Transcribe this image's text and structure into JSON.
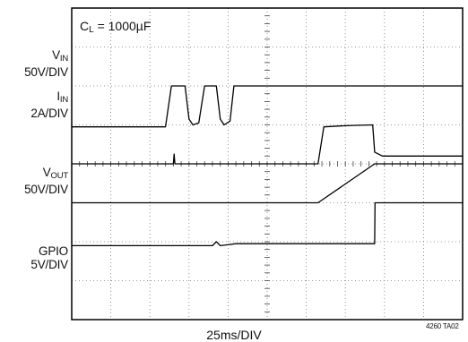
{
  "condition": {
    "symbol": "C",
    "sub": "L",
    "rest": " = 1000µF"
  },
  "labels": {
    "vin": {
      "name": "V",
      "sub": "IN",
      "scale": "50V/DIV"
    },
    "iin": {
      "name": "I",
      "sub": "IN",
      "scale": "2A/DIV"
    },
    "vout": {
      "name": "V",
      "sub": "OUT",
      "scale": "50V/DIV"
    },
    "gpio": {
      "name": "GPIO",
      "sub": "",
      "scale": "5V/DIV"
    }
  },
  "timebase": "25ms/DIV",
  "figure_id": "4260 TA02",
  "chart_data": {
    "type": "line",
    "title": "",
    "xlabel": "25ms/DIV",
    "x_divisions": 10,
    "y_divisions": 8,
    "grid": true,
    "series": [
      {
        "name": "VIN",
        "points": [
          [
            0,
            0.95
          ],
          [
            2.4,
            0.95
          ],
          [
            2.55,
            2.0
          ],
          [
            2.9,
            2.0
          ],
          [
            3.0,
            1.15
          ],
          [
            3.1,
            1.0
          ],
          [
            3.25,
            1.05
          ],
          [
            3.4,
            2.0
          ],
          [
            3.7,
            2.0
          ],
          [
            3.8,
            1.15
          ],
          [
            3.9,
            1.0
          ],
          [
            4.05,
            1.1
          ],
          [
            4.15,
            2.0
          ],
          [
            10,
            2.0
          ]
        ]
      },
      {
        "name": "IIN",
        "points": [
          [
            0,
            0
          ],
          [
            2.6,
            0
          ],
          [
            2.62,
            0.25
          ],
          [
            2.64,
            0
          ],
          [
            6.3,
            0
          ],
          [
            6.45,
            0.95
          ],
          [
            7.0,
            0.98
          ],
          [
            7.7,
            1.0
          ],
          [
            7.75,
            0.3
          ],
          [
            7.95,
            0.2
          ],
          [
            10,
            0.2
          ]
        ]
      },
      {
        "name": "VOUT",
        "points": [
          [
            0,
            -1.0
          ],
          [
            6.3,
            -1.0
          ],
          [
            7.75,
            0.0
          ],
          [
            10,
            0.0
          ]
        ]
      },
      {
        "name": "GPIO",
        "points": [
          [
            0,
            -2.1
          ],
          [
            3.6,
            -2.1
          ],
          [
            3.7,
            -2.0
          ],
          [
            3.8,
            -2.1
          ],
          [
            4.2,
            -2.05
          ],
          [
            7.75,
            -2.05
          ],
          [
            7.76,
            -1.0
          ],
          [
            10,
            -1.0
          ]
        ]
      }
    ]
  }
}
